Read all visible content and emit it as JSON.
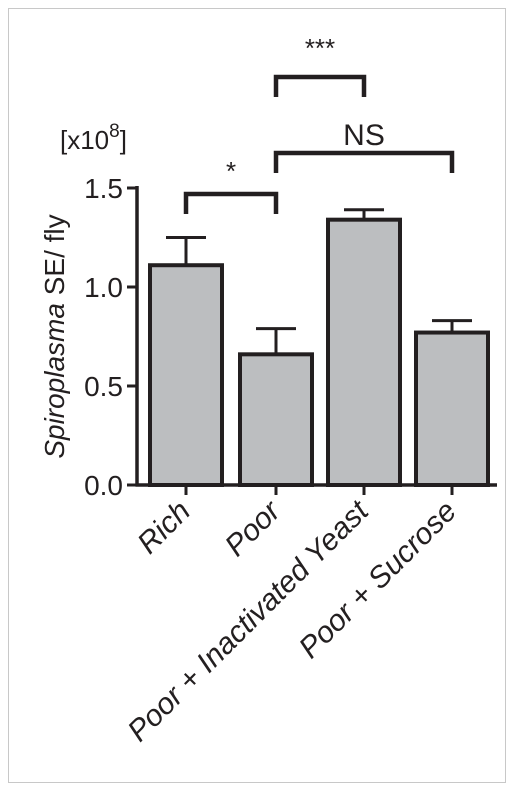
{
  "chart_data": {
    "type": "bar",
    "categories": [
      "Rich",
      "Poor",
      "Poor + Inactivated Yeast",
      "Poor + Sucrose"
    ],
    "values": [
      1.11,
      0.66,
      1.34,
      0.77
    ],
    "errors": [
      0.14,
      0.13,
      0.05,
      0.06
    ],
    "ylabel_italic": "Spiroplasma",
    "ylabel_rest": " SE/ fly",
    "scale_prefix": "[x10",
    "scale_exponent": "8",
    "scale_suffix": "]",
    "ylim": [
      0,
      1.5
    ],
    "yticks": [
      "0.0",
      "0.5",
      "1.0",
      "1.5"
    ],
    "ytick_values": [
      0,
      0.5,
      1.0,
      1.5
    ],
    "significance": [
      {
        "from": 0,
        "to": 1,
        "label": "*"
      },
      {
        "from": 1,
        "to": 3,
        "label": "NS"
      },
      {
        "from": 1,
        "to": 2,
        "label": "***"
      }
    ],
    "bar_color": "#bcbec0",
    "line_color": "#231f20"
  }
}
